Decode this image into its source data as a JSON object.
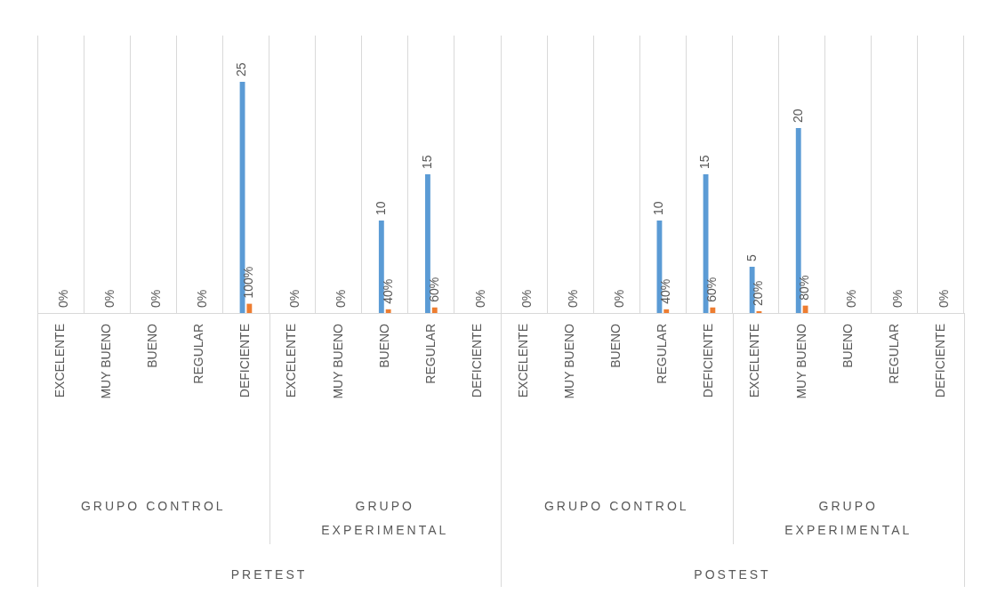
{
  "chart_data": {
    "type": "bar",
    "categories": [
      "EXCELENTE",
      "MUY BUENO",
      "BUENO",
      "REGULAR",
      "DEFICIENTE",
      "EXCELENTE",
      "MUY BUENO",
      "BUENO",
      "REGULAR",
      "DEFICIENTE",
      "EXCELENTE",
      "MUY BUENO",
      "BUENO",
      "REGULAR",
      "DEFICIENTE",
      "EXCELENTE",
      "MUY BUENO",
      "BUENO",
      "REGULAR",
      "DEFICIENTE"
    ],
    "series": [
      {
        "color": "#5b9bd5",
        "values": [
          0,
          0,
          0,
          0,
          25,
          0,
          0,
          10,
          15,
          0,
          0,
          0,
          0,
          10,
          15,
          5,
          20,
          0,
          0,
          0
        ],
        "value_labels": [
          null,
          null,
          null,
          null,
          "25",
          null,
          null,
          "10",
          "15",
          null,
          null,
          null,
          null,
          "10",
          "15",
          "5",
          "20",
          null,
          null,
          null
        ]
      },
      {
        "color": "#ed7d31",
        "axis": "y2",
        "values": [
          0,
          0,
          0,
          0,
          100,
          0,
          0,
          40,
          60,
          0,
          0,
          0,
          0,
          40,
          60,
          20,
          80,
          0,
          0,
          0
        ],
        "value_labels": [
          "0%",
          "0%",
          "0%",
          "0%",
          "100%",
          "0%",
          "0%",
          "40%",
          "60%",
          "0%",
          "0%",
          "0%",
          "0%",
          "40%",
          "60%",
          "20%",
          "80%",
          "0%",
          "0%",
          "0%"
        ]
      }
    ],
    "ylim": [
      0,
      30
    ],
    "y2lim": [
      0,
      3000
    ],
    "tick_labels": "x",
    "grid": "x",
    "annotations": [
      "GRUPO CONTROL",
      "GRUPO EXPERIMENTAL",
      "GRUPO CONTROL",
      "GRUPO EXPERIMENTAL",
      "PRETEST",
      "POSTEST"
    ]
  }
}
